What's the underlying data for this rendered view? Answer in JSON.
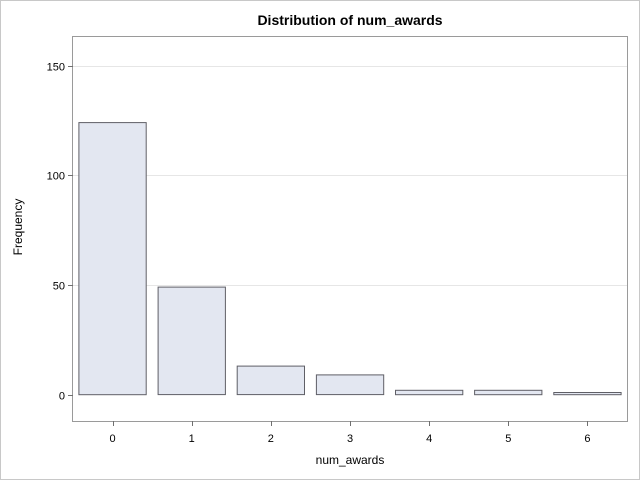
{
  "chart_data": {
    "type": "bar",
    "title": "Distribution of num_awards",
    "xlabel": "num_awards",
    "ylabel": "Frequency",
    "categories": [
      "0",
      "1",
      "2",
      "3",
      "4",
      "5",
      "6"
    ],
    "values": [
      124,
      49,
      13,
      9,
      2,
      2,
      1
    ],
    "yticks": [
      0,
      50,
      100,
      150
    ],
    "ylim": [
      -12,
      163
    ],
    "grid": true,
    "colors": {
      "bar_fill": "#e3e7f1",
      "bar_stroke": "#5f5f66",
      "grid": "#e6e6e6",
      "frame": "#9a9a9a"
    }
  }
}
